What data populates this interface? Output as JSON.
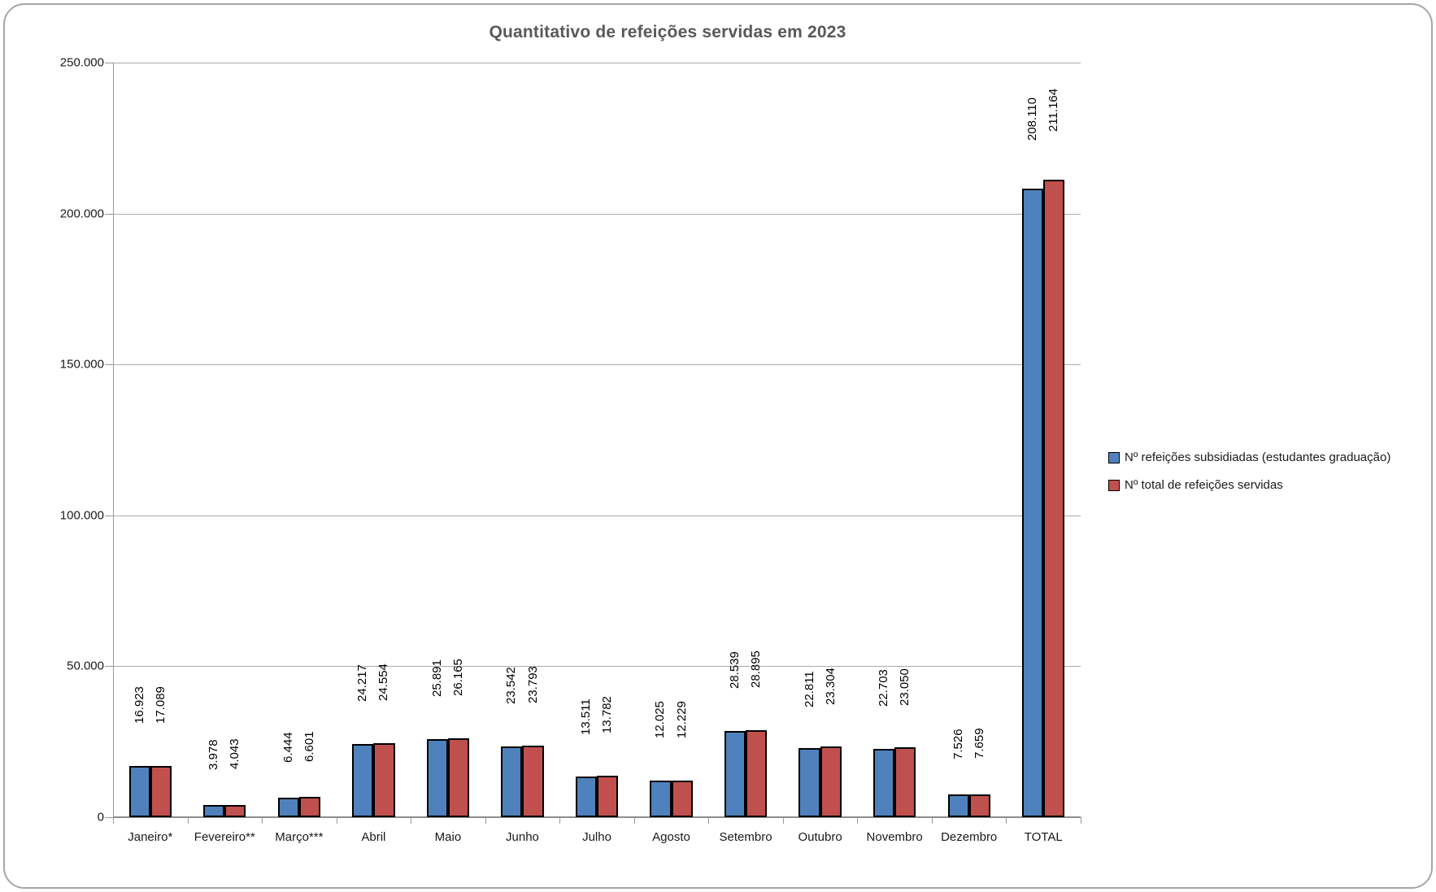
{
  "title": "Quantitativo de refeições servidas em 2023",
  "colors": {
    "series1": "#4f81bd",
    "series2": "#c0504d",
    "bar_border": "#000000",
    "title_text": "#595959",
    "gridline": "#ababab",
    "axis_line": "#9a9a9a",
    "label_text": "#000000"
  },
  "chart_data": {
    "type": "bar",
    "title": "Quantitativo de refeições servidas em 2023",
    "xlabel": "",
    "ylabel": "",
    "ylim": [
      0,
      250000
    ],
    "ytick_interval": 50000,
    "ytick_labels": [
      "0",
      "50.000",
      "100.000",
      "150.000",
      "200.000",
      "250.000"
    ],
    "grid": true,
    "legend_position": "right",
    "data_label_style": "rotated vertical, outside end, thousands separator '.'",
    "categories": [
      "Janeiro*",
      "Fevereiro**",
      "Março***",
      "Abril",
      "Maio",
      "Junho",
      "Julho",
      "Agosto",
      "Setembro",
      "Outubro",
      "Novembro",
      "Dezembro",
      "TOTAL"
    ],
    "series": [
      {
        "name": "Nº refeições subsidiadas (estudantes graduação)",
        "color": "#4f81bd",
        "values": [
          16923,
          3978,
          6444,
          24217,
          25891,
          23542,
          13511,
          12025,
          28539,
          22811,
          22703,
          7526,
          208110
        ],
        "labels": [
          "16.923",
          "3.978",
          "6.444",
          "24.217",
          "25.891",
          "23.542",
          "13.511",
          "12.025",
          "28.539",
          "22.811",
          "22.703",
          "7.526",
          "208.110"
        ]
      },
      {
        "name": "Nº total de refeições servidas",
        "color": "#c0504d",
        "values": [
          17089,
          4043,
          6601,
          24554,
          26165,
          23793,
          13782,
          12229,
          28895,
          23304,
          23050,
          7659,
          211164
        ],
        "labels": [
          "17.089",
          "4.043",
          "6.601",
          "24.554",
          "26.165",
          "23.793",
          "13.782",
          "12.229",
          "28.895",
          "23.304",
          "23.050",
          "7.659",
          "211.164"
        ]
      }
    ]
  },
  "legend": {
    "items": [
      {
        "label": "Nº refeições subsidiadas (estudantes graduação)",
        "color": "#4f81bd"
      },
      {
        "label": "Nº total de refeições servidas",
        "color": "#c0504d"
      }
    ]
  }
}
